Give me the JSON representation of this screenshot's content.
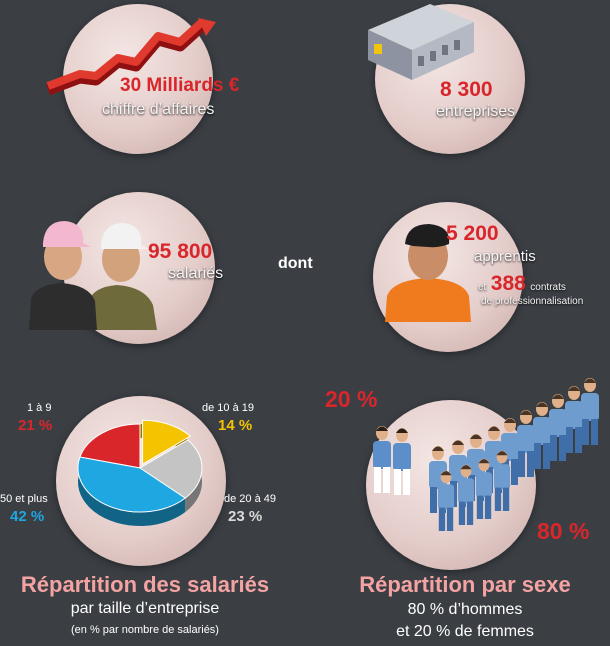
{
  "top_left": {
    "value": "30 Milliards €",
    "label": "chiffre d’affaires",
    "icon": "growth-arrow-icon"
  },
  "top_right": {
    "value": "8 300",
    "label": "entreprises",
    "icon": "factory-icon"
  },
  "mid_left": {
    "value": "95 800",
    "label": "salariés",
    "icon": "workers-icon"
  },
  "mid_connector": "dont",
  "mid_right": {
    "value": "5 200",
    "label": "apprentis",
    "prefix": "et",
    "value2": "388",
    "label2a": "contrats",
    "label2b": "de professionnalisation",
    "icon": "apprentice-icon"
  },
  "chart_data": [
    {
      "type": "pie",
      "title": "Répartition des salariés",
      "subtitle": "par taille d’entreprise",
      "note": "(en % par nombre de salariés)",
      "categories": [
        "1 à 9",
        "de 10 à 19",
        "de 20 à 49",
        "50 et plus"
      ],
      "values": [
        21,
        14,
        23,
        42
      ],
      "value_labels": [
        "21 %",
        "14 %",
        "23 %",
        "42 %"
      ],
      "colors": [
        "#d9262b",
        "#f5c400",
        "#c4c4c4",
        "#1ea7e1"
      ]
    },
    {
      "type": "pie",
      "title": "Répartition par sexe",
      "subtitle": "80 % d’hommes",
      "note": "et 20 % de femmes",
      "categories": [
        "femmes",
        "hommes"
      ],
      "values": [
        20,
        80
      ],
      "value_labels": [
        "20 %",
        "80 %"
      ]
    }
  ],
  "colors": {
    "background": "#3b3f44",
    "accent_red": "#d9262b",
    "heading_pink": "#f4a3a3",
    "disc": "#e8d3d0"
  }
}
